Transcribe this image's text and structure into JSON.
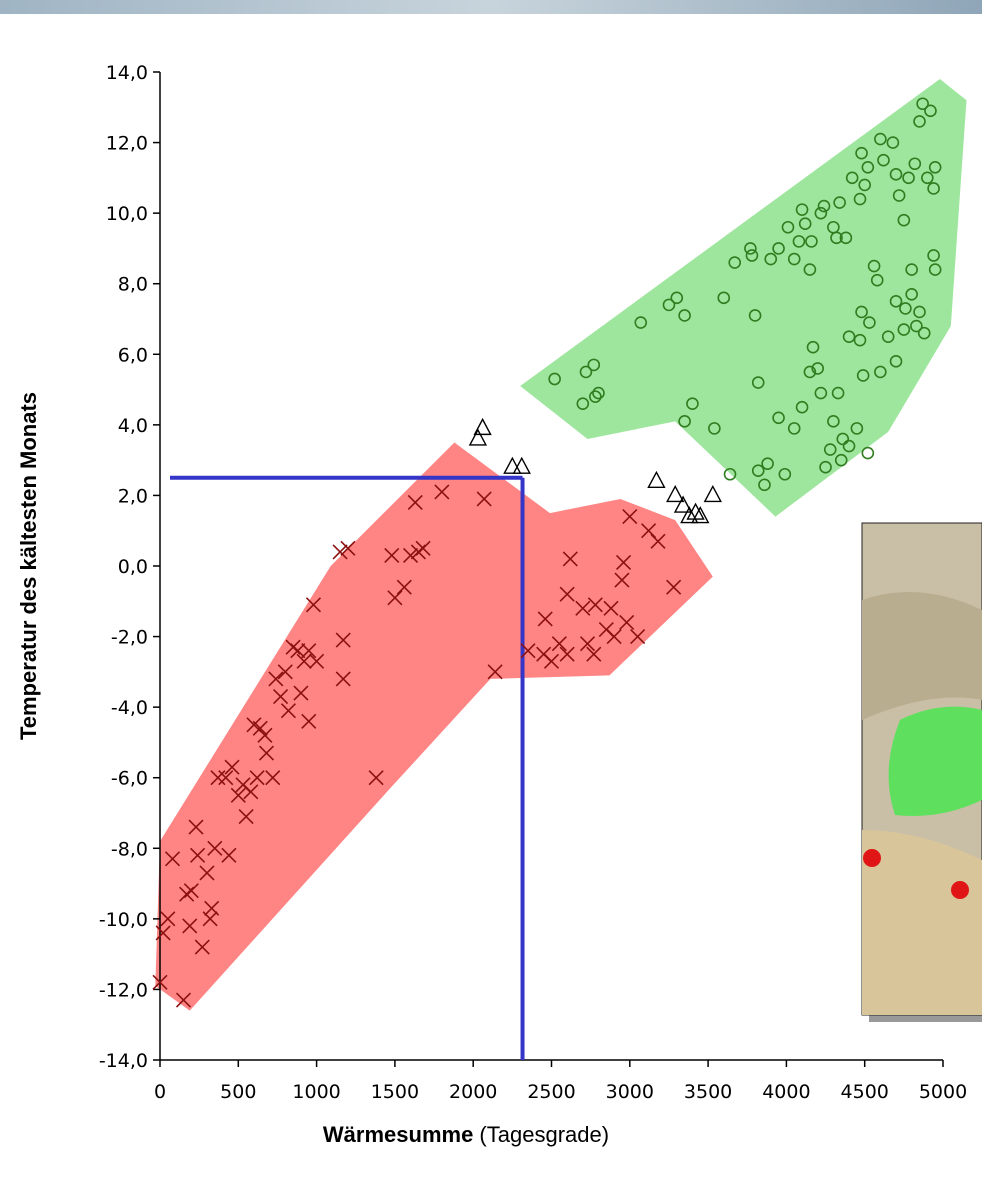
{
  "chart_data": {
    "type": "scatter",
    "xlabel": "Wärmesumme",
    "xlabel_unit": " (Tagesgrade)",
    "ylabel": "Temperatur des kältesten Monats",
    "xlim": [
      0,
      5000
    ],
    "xticks": [
      0,
      500,
      1000,
      1500,
      2000,
      2500,
      3000,
      3500,
      4000,
      4500,
      5000
    ],
    "ylim": [
      -14,
      14
    ],
    "yticks": [
      {
        "value": -14,
        "label": "-14,0"
      },
      {
        "value": -12,
        "label": "-12,0"
      },
      {
        "value": -10,
        "label": "-10,0"
      },
      {
        "value": -8,
        "label": "-8,0"
      },
      {
        "value": -6,
        "label": "-6,0"
      },
      {
        "value": -4,
        "label": "-4,0"
      },
      {
        "value": -2,
        "label": "-2,0"
      },
      {
        "value": 0,
        "label": "0,0"
      },
      {
        "value": 2,
        "label": "2,0"
      },
      {
        "value": 4,
        "label": "4,0"
      },
      {
        "value": 6,
        "label": "6,0"
      },
      {
        "value": 8,
        "label": "8,0"
      },
      {
        "value": 10,
        "label": "10,0"
      },
      {
        "value": 12,
        "label": "12,0"
      },
      {
        "value": 14,
        "label": "14,0"
      }
    ],
    "areas": [
      {
        "color": "#ff8585",
        "x": [
          -30,
          0,
          1090,
          1880,
          2490,
          2940,
          3290,
          3530,
          2870,
          2110,
          1470,
          190
        ],
        "y": [
          -11.9,
          -7.8,
          0.0,
          3.5,
          1.5,
          1.9,
          1.3,
          -0.3,
          -3.1,
          -3.2,
          -6.3,
          -12.6
        ]
      },
      {
        "color": "#9ee69e",
        "x": [
          2300,
          2730,
          3290,
          3930,
          4650,
          5050,
          5150,
          4980
        ],
        "y": [
          5.1,
          3.6,
          4.1,
          1.4,
          3.8,
          6.8,
          13.2,
          13.8
        ]
      }
    ],
    "reference": {
      "color": "#3535c8",
      "x": 2315,
      "y": 2.5
    },
    "series": [
      {
        "marker": "x",
        "color": "#8b1010",
        "x": [
          0,
          20,
          50,
          80,
          150,
          170,
          190,
          200,
          230,
          240,
          270,
          300,
          320,
          330,
          350,
          370,
          420,
          440,
          460,
          500,
          530,
          550,
          580,
          600,
          620,
          640,
          670,
          680,
          720,
          740,
          770,
          800,
          820,
          850,
          880,
          900,
          920,
          950,
          980,
          950,
          1000,
          1150,
          1200,
          1170,
          1170,
          1380,
          1480,
          1500,
          1560,
          1600,
          1630,
          1650,
          1680,
          1800,
          2070,
          2140,
          2350,
          2450,
          2460,
          2500,
          2550,
          2600,
          2620,
          2600,
          2700,
          2730,
          2770,
          2780,
          2850,
          2880,
          2900,
          2950,
          2960,
          2980,
          3000,
          3050,
          3120,
          3180,
          3280
        ],
        "values": [
          -11.8,
          -10.4,
          -10,
          -8.3,
          -12.3,
          -9.3,
          -10.2,
          -9.2,
          -7.4,
          -8.2,
          -10.8,
          -8.7,
          -10,
          -9.7,
          -8,
          -6,
          -6,
          -8.2,
          -5.7,
          -6.5,
          -6.2,
          -7.1,
          -6.4,
          -4.5,
          -6,
          -4.6,
          -4.8,
          -5.3,
          -6,
          -3.2,
          -3.7,
          -3,
          -4.1,
          -2.3,
          -2.4,
          -3.6,
          -2.7,
          -2.4,
          -1.1,
          -4.4,
          -2.7,
          0.4,
          0.5,
          -2.1,
          -3.2,
          -6.0,
          0.3,
          -0.9,
          -0.6,
          0.3,
          1.8,
          0.4,
          0.5,
          2.1,
          1.9,
          -3.0,
          -2.4,
          -2.5,
          -1.5,
          -2.7,
          -2.2,
          -2.5,
          0.2,
          -0.8,
          -1.2,
          -2.2,
          -2.5,
          -1.1,
          -1.8,
          -1.2,
          -2.0,
          -0.4,
          0.1,
          -1.6,
          1.4,
          -2.0,
          1.0,
          0.7,
          -0.6
        ]
      },
      {
        "marker": "circle",
        "color": "#2f7d1f",
        "x": [
          2520,
          2700,
          2720,
          2770,
          2780,
          2800,
          3070,
          3250,
          3300,
          3350,
          3400,
          3350,
          3540,
          3600,
          3670,
          3640,
          3770,
          3780,
          3800,
          3820,
          3900,
          3950,
          3950,
          3860,
          3820,
          3880,
          3990,
          4010,
          4050,
          4080,
          4120,
          4100,
          4150,
          4160,
          4050,
          4100,
          4150,
          4170,
          4200,
          4220,
          4250,
          4280,
          4300,
          4330,
          4360,
          4220,
          4240,
          4300,
          4320,
          4340,
          4380,
          4420,
          4470,
          4480,
          4500,
          4520,
          4600,
          4620,
          4680,
          4700,
          4720,
          4750,
          4780,
          4820,
          4850,
          4870,
          4920,
          4900,
          4940,
          4950,
          4940,
          4950,
          4800,
          4850,
          4800,
          4760,
          4700,
          4650,
          4600,
          4700,
          4750,
          4830,
          4880,
          4530,
          4480,
          4560,
          4580,
          4400,
          4470,
          4490,
          4400,
          4350,
          4450,
          4520
        ],
        "values": [
          5.3,
          4.6,
          5.5,
          5.7,
          4.8,
          4.9,
          6.9,
          7.4,
          7.6,
          7.1,
          4.6,
          4.1,
          3.9,
          7.6,
          8.6,
          2.6,
          9.0,
          8.8,
          7.1,
          5.2,
          8.7,
          9.0,
          4.2,
          2.3,
          2.7,
          2.9,
          2.6,
          9.6,
          8.7,
          9.2,
          9.7,
          10.1,
          8.4,
          9.2,
          3.9,
          4.5,
          5.5,
          6.2,
          5.6,
          4.9,
          2.8,
          3.3,
          4.1,
          4.9,
          3.6,
          10.0,
          10.2,
          9.6,
          9.3,
          10.3,
          9.3,
          11.0,
          10.4,
          11.7,
          10.8,
          11.3,
          12.1,
          11.5,
          12.0,
          11.1,
          10.5,
          9.8,
          11.0,
          11.4,
          12.6,
          13.1,
          12.9,
          11.0,
          10.7,
          11.3,
          8.8,
          8.4,
          8.4,
          7.2,
          7.7,
          7.3,
          7.5,
          6.5,
          5.5,
          5.8,
          6.7,
          6.8,
          6.6,
          6.9,
          7.2,
          8.5,
          8.1,
          6.5,
          6.4,
          5.4,
          3.4,
          3.0,
          3.9,
          3.2
        ]
      },
      {
        "marker": "triangle",
        "color": "#000000",
        "x": [
          2030,
          2060,
          2250,
          2310,
          3170,
          3290,
          3340,
          3380,
          3420,
          3450,
          3530
        ],
        "values": [
          3.6,
          3.9,
          2.8,
          2.8,
          2.4,
          2.0,
          1.7,
          1.4,
          1.5,
          1.4,
          2.0
        ]
      }
    ]
  }
}
